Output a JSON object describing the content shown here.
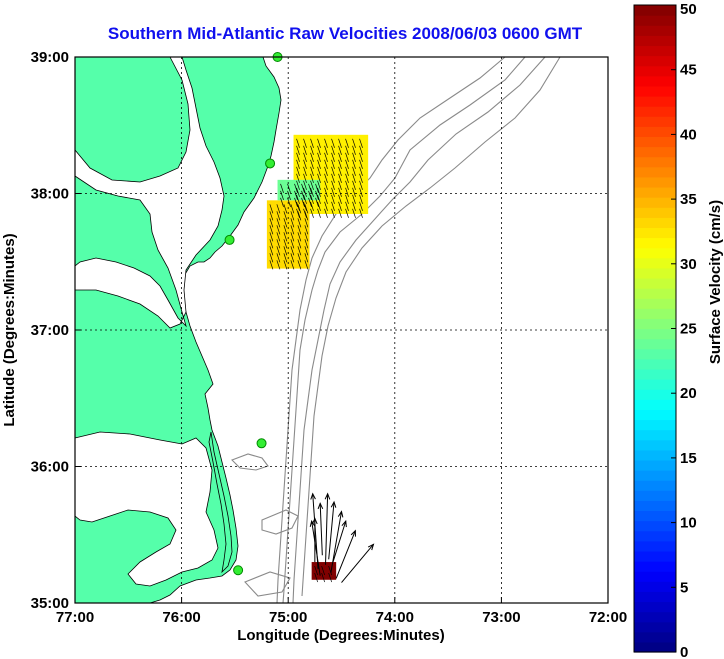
{
  "chart_data": {
    "type": "scatter",
    "title": "Southern Mid-Atlantic Raw Velocities 2008/06/03 0600 GMT",
    "xlabel": "Longitude (Degrees:Minutes)",
    "ylabel": "Latitude (Degrees:Minutes)",
    "xlim": [
      -77,
      -72
    ],
    "ylim": [
      35,
      39
    ],
    "grid": true,
    "x_ticks": [
      {
        "value": -77,
        "label": "77:00"
      },
      {
        "value": -76,
        "label": "76:00"
      },
      {
        "value": -75,
        "label": "75:00"
      },
      {
        "value": -74,
        "label": "74:00"
      },
      {
        "value": -73,
        "label": "73:00"
      },
      {
        "value": -72,
        "label": "72:00"
      }
    ],
    "y_ticks": [
      {
        "value": 35,
        "label": "35:00"
      },
      {
        "value": 36,
        "label": "36:00"
      },
      {
        "value": 37,
        "label": "37:00"
      },
      {
        "value": 38,
        "label": "38:00"
      },
      {
        "value": 39,
        "label": "39:00"
      }
    ],
    "colorbar": {
      "label": "Surface Velocity (cm/s)",
      "min": 0,
      "max": 50,
      "ticks": [
        "0",
        "5",
        "10",
        "15",
        "20",
        "25",
        "30",
        "35",
        "40",
        "45",
        "50"
      ]
    },
    "radar_sites": [
      {
        "lon": -75.1,
        "lat": 39.0
      },
      {
        "lon": -75.17,
        "lat": 38.22
      },
      {
        "lon": -75.55,
        "lat": 37.66
      },
      {
        "lon": -75.25,
        "lat": 36.17
      },
      {
        "lon": -75.47,
        "lat": 35.24
      }
    ],
    "velocity_regions": [
      {
        "lon_min": -74.95,
        "lon_max": -74.25,
        "lat_min": 37.85,
        "lat_max": 38.43,
        "speed_cm_s": 32
      },
      {
        "lon_min": -75.2,
        "lon_max": -74.8,
        "lat_min": 37.45,
        "lat_max": 37.95,
        "speed_cm_s": 33
      },
      {
        "lon_min": -75.1,
        "lon_max": -74.7,
        "lat_min": 37.95,
        "lat_max": 38.1,
        "speed_cm_s": 24
      },
      {
        "lon_min": -74.78,
        "lon_max": -74.55,
        "lat_min": 35.17,
        "lat_max": 35.3,
        "speed_cm_s": 50
      }
    ],
    "vectors": [
      {
        "lon": -74.72,
        "lat": 35.25,
        "dlon": -0.05,
        "dlat": 0.55
      },
      {
        "lon": -74.65,
        "lat": 35.28,
        "dlon": 0.02,
        "dlat": 0.52
      },
      {
        "lon": -74.6,
        "lat": 35.22,
        "dlon": 0.1,
        "dlat": 0.45
      },
      {
        "lon": -74.7,
        "lat": 35.2,
        "dlon": -0.08,
        "dlat": 0.4
      },
      {
        "lon": -74.55,
        "lat": 35.18,
        "dlon": 0.18,
        "dlat": 0.35
      },
      {
        "lon": -74.5,
        "lat": 35.15,
        "dlon": 0.3,
        "dlat": 0.28
      },
      {
        "lon": -74.62,
        "lat": 35.32,
        "dlon": 0.05,
        "dlat": 0.42
      },
      {
        "lon": -74.75,
        "lat": 35.3,
        "dlon": 0.0,
        "dlat": 0.32
      },
      {
        "lon": -74.58,
        "lat": 35.3,
        "dlon": 0.12,
        "dlat": 0.3
      },
      {
        "lon": -74.68,
        "lat": 35.35,
        "dlon": -0.02,
        "dlat": 0.38
      }
    ]
  },
  "legend_labels": {
    "vector_color": "#000000"
  },
  "colors": {
    "land": "#55ffaa",
    "coastline": "#000000",
    "bathymetry": "#8a8a8a",
    "site": "#33ee33",
    "title": "#1010ee",
    "grid": "#000000"
  }
}
